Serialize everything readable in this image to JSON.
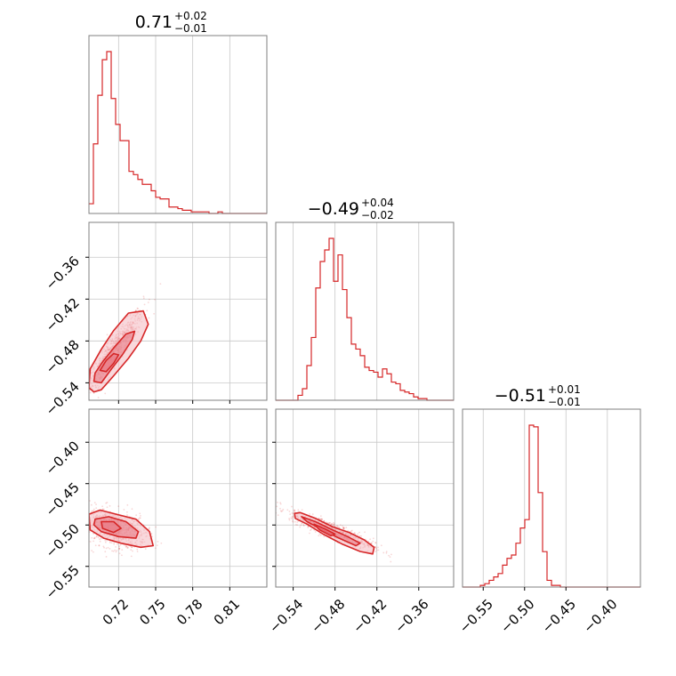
{
  "colors": {
    "accent": "#d62728",
    "fill_light": "#f4b8bf",
    "fill_mid": "#e87b86",
    "frame": "#808080",
    "grid": "#c8c8c8"
  },
  "chart_data": {
    "type": "corner",
    "parameters": [
      {
        "title": {
          "median": "0.71",
          "upper": "+0.02",
          "lower": "−0.01"
        },
        "range": [
          0.696,
          0.84
        ],
        "ticks": [
          0.72,
          0.75,
          0.78,
          0.81
        ],
        "tick_labels": [
          "0.72",
          "0.75",
          "0.78",
          "0.81"
        ],
        "hist": [
          0.06,
          0.43,
          0.73,
          0.95,
          1.0,
          0.71,
          0.55,
          0.45,
          0.45,
          0.26,
          0.24,
          0.21,
          0.18,
          0.18,
          0.14,
          0.1,
          0.09,
          0.09,
          0.04,
          0.04,
          0.03,
          0.02,
          0.02,
          0.01,
          0.01,
          0.01,
          0.01,
          0.0,
          0.0,
          0.01,
          0.0,
          0.0,
          0.0,
          0.0,
          0.0,
          0.0,
          0.0,
          0.0,
          0.0,
          0.0
        ]
      },
      {
        "title": {
          "median": "−0.49",
          "upper": "+0.04",
          "lower": "−0.02"
        },
        "range": [
          -0.565,
          -0.31
        ],
        "ticks": [
          -0.54,
          -0.48,
          -0.42,
          -0.36
        ],
        "tick_labels": [
          "−0.54",
          "−0.48",
          "−0.42",
          "−0.36"
        ],
        "hist": [
          0.0,
          0.0,
          0.0,
          0.0,
          0.0,
          0.03,
          0.07,
          0.21,
          0.38,
          0.68,
          0.84,
          0.91,
          0.98,
          0.72,
          0.88,
          0.67,
          0.5,
          0.34,
          0.31,
          0.27,
          0.2,
          0.18,
          0.17,
          0.14,
          0.19,
          0.16,
          0.11,
          0.1,
          0.06,
          0.05,
          0.04,
          0.02,
          0.01,
          0.01,
          0.0,
          0.0,
          0.0,
          0.0,
          0.0,
          0.0
        ]
      },
      {
        "title": {
          "median": "−0.51",
          "upper": "+0.01",
          "lower": "−0.01"
        },
        "range": [
          -0.575,
          -0.36
        ],
        "ticks": [
          -0.55,
          -0.5,
          -0.45,
          -0.4
        ],
        "tick_labels": [
          "−0.55",
          "−0.50",
          "−0.45",
          "−0.40"
        ],
        "hist": [
          0.0,
          0.0,
          0.0,
          0.0,
          0.01,
          0.02,
          0.04,
          0.06,
          0.08,
          0.13,
          0.17,
          0.19,
          0.26,
          0.35,
          0.4,
          0.96,
          0.95,
          0.56,
          0.21,
          0.04,
          0.01,
          0.01,
          0.0,
          0.0,
          0.0,
          0.0,
          0.0,
          0.0,
          0.0,
          0.0,
          0.0,
          0.0,
          0.0,
          0.0,
          0.0,
          0.0,
          0.0,
          0.0,
          0.0,
          0.0
        ]
      }
    ],
    "pairs": [
      {
        "x_param": 0,
        "y_param": 1,
        "contours": [
          [
            [
              0.696,
              -0.547
            ],
            [
              0.7,
              -0.553
            ],
            [
              0.706,
              -0.55
            ],
            [
              0.716,
              -0.53
            ],
            [
              0.728,
              -0.505
            ],
            [
              0.738,
              -0.48
            ],
            [
              0.744,
              -0.456
            ],
            [
              0.74,
              -0.437
            ],
            [
              0.728,
              -0.44
            ],
            [
              0.716,
              -0.465
            ],
            [
              0.706,
              -0.492
            ],
            [
              0.697,
              -0.52
            ]
          ],
          [
            [
              0.7,
              -0.538
            ],
            [
              0.706,
              -0.54
            ],
            [
              0.713,
              -0.523
            ],
            [
              0.723,
              -0.5
            ],
            [
              0.731,
              -0.478
            ],
            [
              0.733,
              -0.466
            ],
            [
              0.726,
              -0.47
            ],
            [
              0.716,
              -0.49
            ],
            [
              0.707,
              -0.51
            ],
            [
              0.701,
              -0.526
            ]
          ],
          [
            [
              0.705,
              -0.522
            ],
            [
              0.71,
              -0.524
            ],
            [
              0.716,
              -0.512
            ],
            [
              0.72,
              -0.5
            ],
            [
              0.716,
              -0.498
            ],
            [
              0.71,
              -0.508
            ]
          ]
        ],
        "scatter_center": [
          0.716,
          -0.495
        ],
        "scatter_spread": [
          0.012,
          0.03
        ],
        "scatter_corr": 0.93
      },
      {
        "x_param": 0,
        "y_param": 2,
        "contours": [
          [
            [
              0.696,
              -0.487
            ],
            [
              0.705,
              -0.482
            ],
            [
              0.718,
              -0.487
            ],
            [
              0.734,
              -0.493
            ],
            [
              0.745,
              -0.508
            ],
            [
              0.748,
              -0.525
            ],
            [
              0.738,
              -0.527
            ],
            [
              0.722,
              -0.522
            ],
            [
              0.708,
              -0.516
            ],
            [
              0.697,
              -0.506
            ]
          ],
          [
            [
              0.701,
              -0.493
            ],
            [
              0.712,
              -0.49
            ],
            [
              0.726,
              -0.496
            ],
            [
              0.736,
              -0.508
            ],
            [
              0.734,
              -0.516
            ],
            [
              0.72,
              -0.514
            ],
            [
              0.706,
              -0.508
            ],
            [
              0.7,
              -0.5
            ]
          ],
          [
            [
              0.706,
              -0.496
            ],
            [
              0.716,
              -0.496
            ],
            [
              0.722,
              -0.504
            ],
            [
              0.716,
              -0.509
            ],
            [
              0.707,
              -0.504
            ]
          ]
        ],
        "scatter_center": [
          0.716,
          -0.505
        ],
        "scatter_spread": [
          0.013,
          0.012
        ],
        "scatter_corr": -0.35
      },
      {
        "x_param": 1,
        "y_param": 2,
        "contours": [
          [
            [
              -0.538,
              -0.486
            ],
            [
              -0.53,
              -0.485
            ],
            [
              -0.508,
              -0.492
            ],
            [
              -0.484,
              -0.502
            ],
            [
              -0.46,
              -0.509
            ],
            [
              -0.438,
              -0.518
            ],
            [
              -0.424,
              -0.527
            ],
            [
              -0.426,
              -0.535
            ],
            [
              -0.444,
              -0.532
            ],
            [
              -0.47,
              -0.523
            ],
            [
              -0.497,
              -0.511
            ],
            [
              -0.52,
              -0.499
            ],
            [
              -0.537,
              -0.492
            ]
          ],
          [
            [
              -0.528,
              -0.49
            ],
            [
              -0.508,
              -0.496
            ],
            [
              -0.486,
              -0.505
            ],
            [
              -0.462,
              -0.514
            ],
            [
              -0.444,
              -0.522
            ],
            [
              -0.45,
              -0.525
            ],
            [
              -0.474,
              -0.516
            ],
            [
              -0.498,
              -0.506
            ],
            [
              -0.52,
              -0.496
            ]
          ],
          [
            [
              -0.51,
              -0.499
            ],
            [
              -0.494,
              -0.505
            ],
            [
              -0.48,
              -0.511
            ],
            [
              -0.486,
              -0.513
            ],
            [
              -0.502,
              -0.506
            ]
          ]
        ],
        "scatter_center": [
          -0.485,
          -0.506
        ],
        "scatter_spread": [
          0.03,
          0.011
        ],
        "scatter_corr": -0.9
      }
    ]
  }
}
